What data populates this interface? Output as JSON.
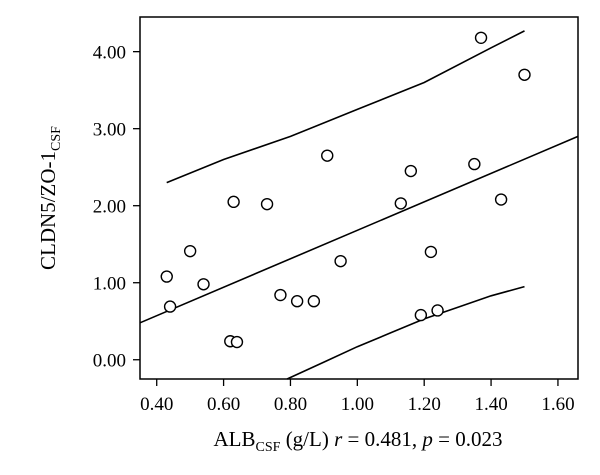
{
  "chart_data": {
    "type": "scatter",
    "xlabel": {
      "main": "ALB",
      "sub": "CSF",
      "unit": " (g/L) ",
      "stat_r_symbol": "r",
      "stat_r_value": " = 0.481, ",
      "stat_p_symbol": "p",
      "stat_p_value": " = 0.023"
    },
    "ylabel": {
      "main": "CLDN5/ZO-1",
      "sub": "CSF"
    },
    "xlim": [
      0.35,
      1.66
    ],
    "ylim": [
      -0.25,
      4.45
    ],
    "x_ticks": [
      0.4,
      0.6,
      0.8,
      1.0,
      1.2,
      1.4,
      1.6
    ],
    "x_tick_labels": [
      "0.40",
      "0.60",
      "0.80",
      "1.00",
      "1.20",
      "1.40",
      "1.60"
    ],
    "y_ticks": [
      0,
      1,
      2,
      3,
      4
    ],
    "y_tick_labels": [
      "0.00",
      "1.00",
      "2.00",
      "3.00",
      "4.00"
    ],
    "grid": false,
    "legend": "none",
    "points": [
      {
        "x": 0.43,
        "y": 1.08
      },
      {
        "x": 0.44,
        "y": 0.69
      },
      {
        "x": 0.5,
        "y": 1.41
      },
      {
        "x": 0.54,
        "y": 0.98
      },
      {
        "x": 0.62,
        "y": 0.24
      },
      {
        "x": 0.63,
        "y": 2.05
      },
      {
        "x": 0.64,
        "y": 0.23
      },
      {
        "x": 0.73,
        "y": 2.02
      },
      {
        "x": 0.77,
        "y": 0.84
      },
      {
        "x": 0.82,
        "y": 0.76
      },
      {
        "x": 0.87,
        "y": 0.76
      },
      {
        "x": 0.91,
        "y": 2.65
      },
      {
        "x": 0.95,
        "y": 1.28
      },
      {
        "x": 1.13,
        "y": 2.03
      },
      {
        "x": 1.16,
        "y": 2.45
      },
      {
        "x": 1.19,
        "y": 0.58
      },
      {
        "x": 1.22,
        "y": 1.4
      },
      {
        "x": 1.24,
        "y": 0.64
      },
      {
        "x": 1.35,
        "y": 2.54
      },
      {
        "x": 1.37,
        "y": 4.18
      },
      {
        "x": 1.43,
        "y": 2.08
      },
      {
        "x": 1.5,
        "y": 3.7
      }
    ],
    "fit_line": {
      "x": [
        0.35,
        1.66
      ],
      "y": [
        0.48,
        2.9
      ]
    },
    "upper_band": {
      "x": [
        0.43,
        0.6,
        0.8,
        1.0,
        1.2,
        1.4,
        1.5
      ],
      "y": [
        2.3,
        2.6,
        2.9,
        3.25,
        3.6,
        4.05,
        4.27
      ]
    },
    "lower_band": {
      "x": [
        0.79,
        0.9,
        1.0,
        1.1,
        1.2,
        1.3,
        1.4,
        1.5
      ],
      "y": [
        -0.25,
        -0.03,
        0.17,
        0.35,
        0.53,
        0.68,
        0.83,
        0.95
      ]
    }
  }
}
